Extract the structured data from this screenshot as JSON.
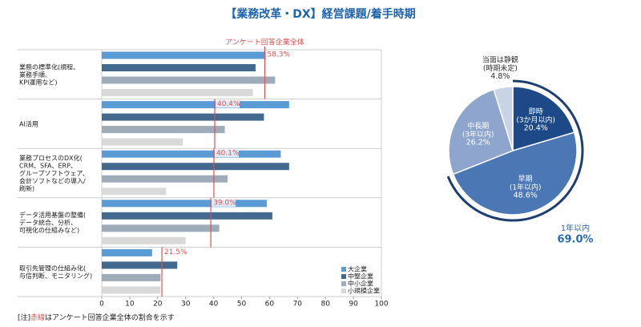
{
  "title": "【業務改革・DX】経営課題/着手時期",
  "note": {
    "prefix": "[注]",
    "highlight": "赤線",
    "text": "はアンケート回答企業全体の割合を示す"
  },
  "chart_data": [
    {
      "type": "bar",
      "orientation": "horizontal",
      "categories": [
        "業務の標準化(規程、\n業務手順、\nKPI運用など)",
        "AI活用",
        "業務プロセスのDX化(\nCRM、SFA、ERP、\nグループソフトウェア、\n会計ソフトなどの導入/\n刷新)",
        "データ活用基盤の整備(\nデータ統合、分析、\n可視化の仕組みなど)",
        "取引先管理の仕組み化(\n与信判断、モニタリング)"
      ],
      "series": [
        {
          "name": "大企業",
          "color": "#5b9bd5",
          "values": [
            59,
            67,
            64,
            59,
            18
          ]
        },
        {
          "name": "中堅企業",
          "color": "#44698f",
          "values": [
            55,
            58,
            67,
            61,
            27
          ]
        },
        {
          "name": "中小企業",
          "color": "#9eabb9",
          "values": [
            62,
            44,
            45,
            42,
            21
          ]
        },
        {
          "name": "小規模企業",
          "color": "#d9d9d9",
          "values": [
            54,
            29,
            23,
            30,
            21
          ]
        }
      ],
      "reference": {
        "name": "アンケート回答企業全体",
        "color": "#e05050",
        "values": [
          58.3,
          40.4,
          40.1,
          39.0,
          21.5
        ],
        "value_labels": [
          "58.3%",
          "40.4%",
          "40.1%",
          "39.0%",
          "21.5%"
        ]
      },
      "xlim": [
        0,
        100
      ],
      "xticks": [
        0,
        10,
        20,
        30,
        40,
        50,
        60,
        70,
        80,
        90,
        100
      ],
      "legend": "bottom-right"
    },
    {
      "type": "pie",
      "categories": [
        "即時\n(3か月以内)",
        "早期\n(1年以内)",
        "中長期\n(3年以内)",
        "当面は静観\n(時期未定)"
      ],
      "values": [
        20.4,
        48.6,
        26.2,
        4.8
      ],
      "value_labels": [
        "20.4%",
        "48.6%",
        "26.2%",
        "4.8%"
      ],
      "colors": [
        "#1d4a86",
        "#4b78b5",
        "#8ea5cd",
        "#c9d3e6"
      ],
      "annotation": {
        "label": "1年以内",
        "value": 69.0,
        "value_label": "69.0%",
        "color": "#2a6bb0"
      }
    }
  ]
}
